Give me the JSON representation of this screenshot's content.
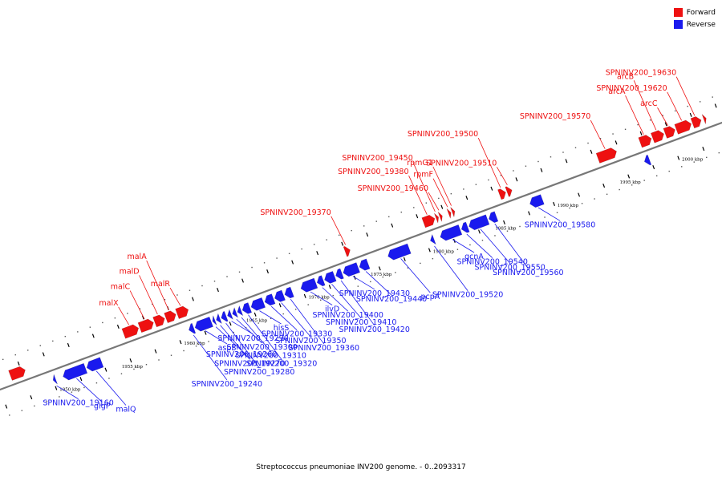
{
  "title": "Streptococcus pneumoniae INV200 genome. - 0..2093317",
  "legend": {
    "forward": "Forward",
    "reverse": "Reverse"
  },
  "colors": {
    "forward": "#ee1111",
    "reverse": "#1a1aee",
    "backbone": "#777777",
    "tick": "#000000"
  },
  "genome": {
    "ticks": [
      {
        "kbp": 1950,
        "label": "1950 kbp"
      },
      {
        "kbp": 1955,
        "label": "1955 kbp"
      },
      {
        "kbp": 1960,
        "label": "1960 kbp"
      },
      {
        "kbp": 1965,
        "label": "1965 kbp"
      },
      {
        "kbp": 1970,
        "label": "1970 kbp"
      },
      {
        "kbp": 1975,
        "label": "1975 kbp"
      },
      {
        "kbp": 1980,
        "label": "1980 kbp"
      },
      {
        "kbp": 1985,
        "label": "1985 kbp"
      },
      {
        "kbp": 1990,
        "label": "1990 kbp"
      },
      {
        "kbp": 1995,
        "label": "1995 kbp"
      },
      {
        "kbp": 2000,
        "label": "2000 kbp"
      }
    ],
    "forward_genes": [
      {
        "name": "",
        "start": 1946.1,
        "end": 1947.3
      },
      {
        "name": "malX",
        "start": 1955.2,
        "end": 1956.4
      },
      {
        "name": "malC",
        "start": 1956.5,
        "end": 1957.6
      },
      {
        "name": "malD",
        "start": 1957.7,
        "end": 1958.5
      },
      {
        "name": "malA",
        "start": 1958.6,
        "end": 1959.4
      },
      {
        "name": "malR",
        "start": 1959.5,
        "end": 1960.4
      },
      {
        "name": "SPNINV200_19370",
        "start": 1973.0,
        "end": 1973.4
      },
      {
        "name": "SPNINV200_19380",
        "start": 1979.3,
        "end": 1980.2
      },
      {
        "name": "SPNINV200_19450",
        "start": 1980.3,
        "end": 1980.5
      },
      {
        "name": "SPNINV200_19460",
        "start": 1980.6,
        "end": 1980.8
      },
      {
        "name": "rpmF",
        "start": 1981.3,
        "end": 1981.5
      },
      {
        "name": "rpmG1",
        "start": 1981.6,
        "end": 1981.8
      },
      {
        "name": "SPNINV200_19500",
        "start": 1985.4,
        "end": 1985.9
      },
      {
        "name": "SPNINV200_19510",
        "start": 1986.0,
        "end": 1986.4
      },
      {
        "name": "SPNINV200_19570",
        "start": 1993.3,
        "end": 1994.8
      },
      {
        "name": "arcA",
        "start": 1996.7,
        "end": 1997.6
      },
      {
        "name": "arcB",
        "start": 1997.7,
        "end": 1998.6
      },
      {
        "name": "arcC",
        "start": 1998.7,
        "end": 1999.5
      },
      {
        "name": "SPNINV200_19620",
        "start": 1999.6,
        "end": 2000.8
      },
      {
        "name": "SPNINV200_19630",
        "start": 2000.9,
        "end": 2001.6
      },
      {
        "name": "",
        "start": 2001.8,
        "end": 2002.0
      }
    ],
    "reverse_genes": [
      {
        "name": "SPNINV200_19160",
        "start": 1949.0,
        "end": 1949.2
      },
      {
        "name": "glgP",
        "start": 1949.8,
        "end": 1951.6
      },
      {
        "name": "malQ",
        "start": 1951.7,
        "end": 1952.9
      },
      {
        "name": "SPNINV200_19240",
        "start": 1959.9,
        "end": 1960.3
      },
      {
        "name": "aspS",
        "start": 1960.4,
        "end": 1961.7
      },
      {
        "name": "SPNINV200_19260",
        "start": 1961.8,
        "end": 1962.0
      },
      {
        "name": "SPNINV200_19270",
        "start": 1962.1,
        "end": 1962.4
      },
      {
        "name": "SPNINV200_19280",
        "start": 1962.5,
        "end": 1962.9
      },
      {
        "name": "SPNINV200_19290",
        "start": 1963.0,
        "end": 1963.3
      },
      {
        "name": "SPNINV200_19300",
        "start": 1963.4,
        "end": 1963.7
      },
      {
        "name": "SPNINV200_19310",
        "start": 1963.8,
        "end": 1964.1
      },
      {
        "name": "SPNINV200_19320",
        "start": 1964.2,
        "end": 1964.8
      },
      {
        "name": "hisS",
        "start": 1964.9,
        "end": 1965.9
      },
      {
        "name": "SPNINV200_19330",
        "start": 1966.0,
        "end": 1966.7
      },
      {
        "name": "SPNINV200_19350",
        "start": 1966.8,
        "end": 1967.5
      },
      {
        "name": "SPNINV200_19360",
        "start": 1967.6,
        "end": 1968.2
      },
      {
        "name": "ilvD",
        "start": 1968.9,
        "end": 1970.1
      },
      {
        "name": "SPNINV200_19400",
        "start": 1970.2,
        "end": 1970.7
      },
      {
        "name": "SPNINV200_19410",
        "start": 1970.8,
        "end": 1971.6
      },
      {
        "name": "SPNINV200_19420",
        "start": 1971.7,
        "end": 1972.2
      },
      {
        "name": "SPNINV200_19430",
        "start": 1972.3,
        "end": 1973.5
      },
      {
        "name": "SPNINV200_19440",
        "start": 1973.6,
        "end": 1974.3
      },
      {
        "name": "pcpA",
        "start": 1975.9,
        "end": 1977.6
      },
      {
        "name": "SPNINV200_19520",
        "start": 1979.3,
        "end": 1979.6
      },
      {
        "name": "gcnA",
        "start": 1980.1,
        "end": 1981.7
      },
      {
        "name": "SPNINV200_19540",
        "start": 1981.8,
        "end": 1982.3
      },
      {
        "name": "SPNINV200_19550",
        "start": 1982.4,
        "end": 1983.9
      },
      {
        "name": "SPNINV200_19560",
        "start": 1984.0,
        "end": 1984.6
      },
      {
        "name": "SPNINV200_19580",
        "start": 1987.3,
        "end": 1988.3
      },
      {
        "name": "",
        "start": 1996.5,
        "end": 1996.9
      }
    ]
  }
}
